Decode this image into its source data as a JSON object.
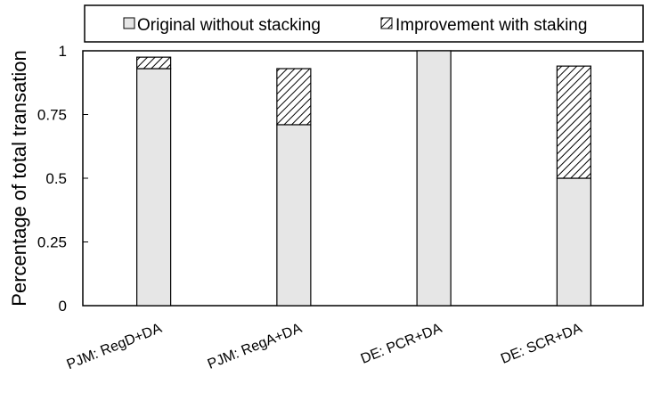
{
  "chart_data": {
    "type": "bar",
    "stacked": true,
    "categories": [
      "PJM: RegD+DA",
      "PJM: RegA+DA",
      "DE: PCR+DA",
      "DE: SCR+DA"
    ],
    "series": [
      {
        "name": "Original without stacking",
        "values": [
          0.93,
          0.71,
          1.0,
          0.5
        ],
        "color": "#e6e6e6",
        "pattern": "solid"
      },
      {
        "name": "Improvement with staking",
        "values": [
          0.045,
          0.22,
          0.0,
          0.44
        ],
        "color": "#000000",
        "pattern": "hatch"
      }
    ],
    "xlabel": "",
    "ylabel": "Percentage of total transation",
    "ylim": [
      0,
      1
    ],
    "yticks": [
      0,
      0.25,
      0.5,
      0.75,
      1
    ],
    "ytick_labels": [
      "0",
      "0.25",
      "0.5",
      "0.75",
      "1"
    ],
    "grid": false,
    "legend": "top"
  }
}
